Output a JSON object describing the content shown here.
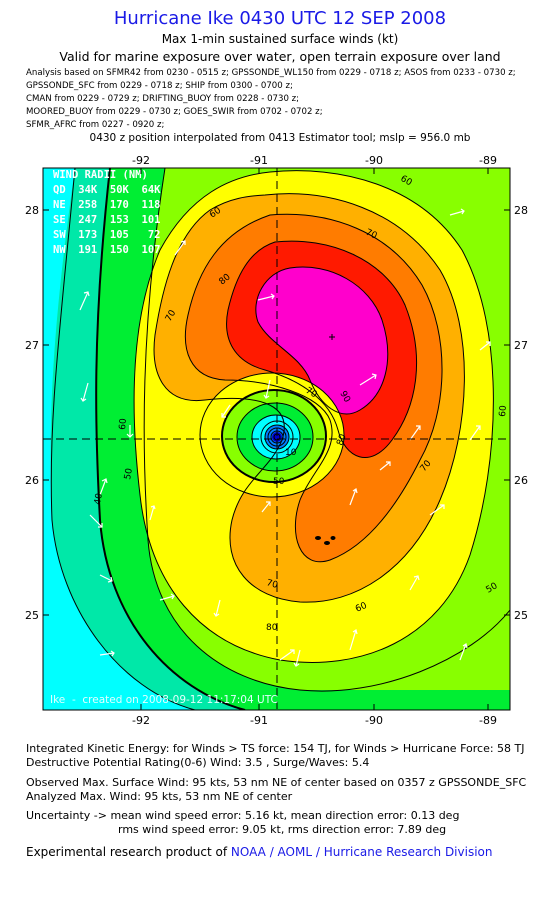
{
  "header": {
    "title": "Hurricane Ike 0430 UTC 12 SEP 2008",
    "subtitle1": "Max 1-min sustained surface winds (kt)",
    "subtitle2": "Valid for marine exposure over water, open terrain exposure over land",
    "sources": [
      "Analysis based on   SFMR42 from 0230 - 0515 z;  GPSSONDE_WL150 from 0229 - 0718 z;  ASOS from 0233 - 0730 z;",
      "GPSSONDE_SFC from 0229 - 0718 z;  SHIP from 0300 - 0700 z;",
      "CMAN from 0229 - 0729 z;  DRIFTING_BUOY from 0228 - 0730 z;",
      "MOORED_BUOY from 0229 - 0730 z;  GOES_SWIR from 0702 - 0702 z;",
      "SFMR_AFRC from 0227 - 0920 z;"
    ],
    "position_note": "0430 z position interpolated from 0413 Estimator tool; mslp = 956.0 mb"
  },
  "map": {
    "lon_ticks": [
      "-92",
      "-91",
      "-90",
      "-89"
    ],
    "lat_ticks": [
      "28",
      "27",
      "26",
      "25"
    ],
    "lon_range": [
      -92.7,
      -88.9
    ],
    "lat_range": [
      24.3,
      28.65
    ],
    "center": {
      "lon": -90.83,
      "lat": 26.3
    },
    "max_wind_location": {
      "lon": -90.3,
      "lat": 27.05
    },
    "wind_radii": {
      "title": "WIND RADII (NM)",
      "header": "QD  34K  50K  64K",
      "rows": [
        "NE  258  170  118",
        "SE  247  153  101",
        "SW  173  105   72",
        "NW  191  150  107"
      ]
    },
    "contour_labels": [
      "10",
      "40",
      "50",
      "50",
      "50",
      "60",
      "60",
      "60",
      "60",
      "60",
      "70",
      "70",
      "70",
      "70",
      "70",
      "80",
      "80",
      "80",
      "90"
    ],
    "credit": "Ike  -  created on 2008-09-12 11:17:04 UTC",
    "colors": {
      "cyan": "#00ffff",
      "teal": "#00e8a8",
      "green": "#00ee33",
      "lime": "#88ff00",
      "yellow": "#ffff00",
      "orange_light": "#ffb000",
      "orange": "#ff7c00",
      "red": "#ff1a00",
      "magenta": "#ff00cc"
    }
  },
  "footer": {
    "ike": "Integrated Kinetic Energy:  for Winds > TS force: 154 TJ,  for Winds > Hurricane Force: 58 TJ",
    "dpr": "Destructive Potential Rating(0-6)   Wind: 3.5 , Surge/Waves: 5.4",
    "obs_max": "Observed Max. Surface Wind: 95 kts, 53 nm NE of center based on 0357 z GPSSONDE_SFC",
    "analyzed_max": "Analyzed Max. Wind: 95 kts, 53 nm NE of center",
    "uncertainty1": "Uncertainty -> mean wind speed error: 5.16 kt,   mean direction error: 0.13 deg",
    "uncertainty2": "rms wind speed error: 9.05 kt,   rms direction error: 7.89 deg",
    "credit_prefix": "Experimental research product of ",
    "credit_link": "NOAA / AOML / Hurricane Research Division"
  }
}
